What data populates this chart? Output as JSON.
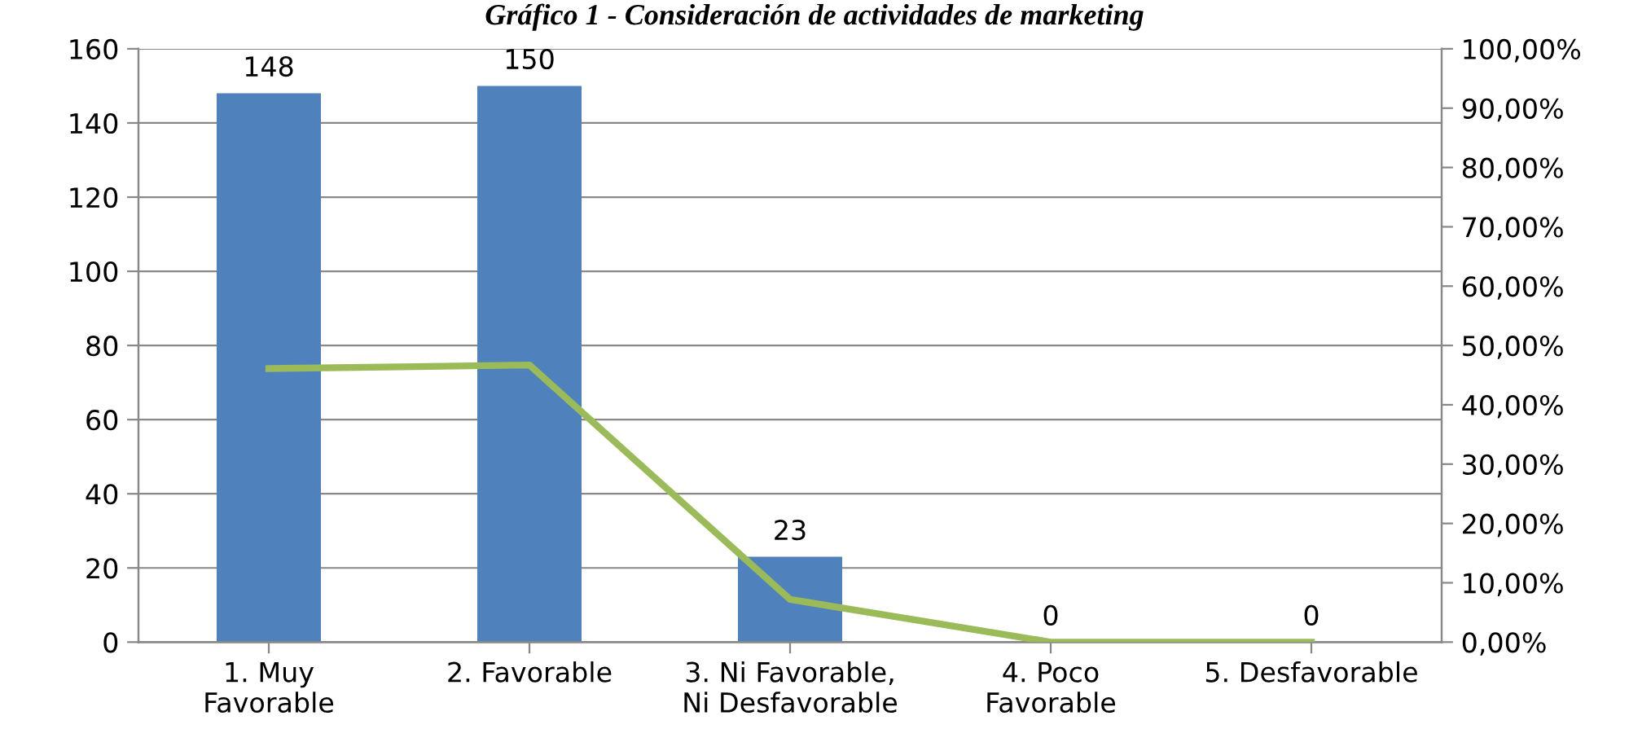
{
  "chart_data": {
    "type": "bar",
    "title": "Gráfico 1 - Consideración de actividades de marketing",
    "categories": [
      "1. Muy\nFavorable",
      "2. Favorable",
      "3. Ni Favorable,\nNi Desfavorable",
      "4. Poco\nFavorable",
      "5. Desfavorable"
    ],
    "series": [
      {
        "color": "#4f81bd",
        "values": [
          148,
          150,
          23,
          0,
          0
        ],
        "value_labels": [
          "148",
          "150",
          "23",
          "0",
          "0"
        ]
      },
      {
        "type": "line",
        "axis": "y2",
        "color": "#9bbb59",
        "values": [
          46.1,
          46.7,
          7.2,
          0,
          0
        ]
      }
    ],
    "ylim": [
      0,
      160
    ],
    "yticks": [
      0,
      20,
      40,
      60,
      80,
      100,
      120,
      140,
      160
    ],
    "y2lim": [
      0,
      100
    ],
    "y2ticks": [
      {
        "value": 0,
        "label": "0,00%"
      },
      {
        "value": 10,
        "label": "10,00%"
      },
      {
        "value": 20,
        "label": "20,00%"
      },
      {
        "value": 30,
        "label": "30,00%"
      },
      {
        "value": 40,
        "label": "40,00%"
      },
      {
        "value": 50,
        "label": "50,00%"
      },
      {
        "value": 60,
        "label": "60,00%"
      },
      {
        "value": 70,
        "label": "70,00%"
      },
      {
        "value": 80,
        "label": "80,00%"
      },
      {
        "value": 90,
        "label": "90,00%"
      },
      {
        "value": 100,
        "label": "100,00%"
      }
    ],
    "grid": "y"
  }
}
